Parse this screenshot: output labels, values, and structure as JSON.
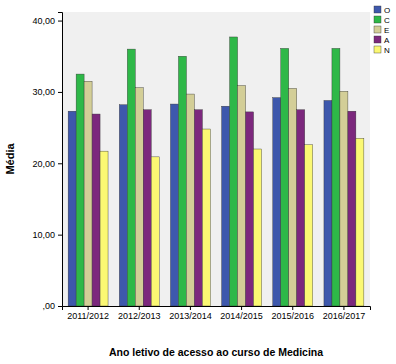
{
  "chart_data": {
    "type": "bar",
    "x_label": "Ano letivo de acesso ao curso de Medicina",
    "y_label": "Média",
    "categories": [
      "2011/2012",
      "2012/2013",
      "2013/2014",
      "2014/2015",
      "2015/2016",
      "2016/2017"
    ],
    "series": [
      {
        "name": "O",
        "color": "#3e58ac",
        "values": [
          27.3,
          28.2,
          28.3,
          28.0,
          29.2,
          28.8
        ]
      },
      {
        "name": "C",
        "color": "#2eb848",
        "values": [
          32.5,
          36.0,
          35.0,
          37.7,
          36.1,
          36.1
        ]
      },
      {
        "name": "E",
        "color": "#d3ce97",
        "values": [
          31.5,
          30.6,
          29.7,
          30.9,
          30.5,
          30.1
        ]
      },
      {
        "name": "A",
        "color": "#7c287d",
        "values": [
          26.9,
          27.5,
          27.5,
          27.2,
          27.5,
          27.3
        ]
      },
      {
        "name": "N",
        "color": "#fbf873",
        "values": [
          21.7,
          20.9,
          24.8,
          22.0,
          22.6,
          23.5
        ]
      }
    ],
    "ylim": [
      0,
      41.2
    ],
    "yticks": [
      {
        "value": 0,
        "label": ",00"
      },
      {
        "value": 10,
        "label": "10,00"
      },
      {
        "value": 20,
        "label": "20,00"
      },
      {
        "value": 30,
        "label": "30,00"
      },
      {
        "value": 40,
        "label": "40,00"
      }
    ],
    "grid": false,
    "legend": "top-right"
  }
}
